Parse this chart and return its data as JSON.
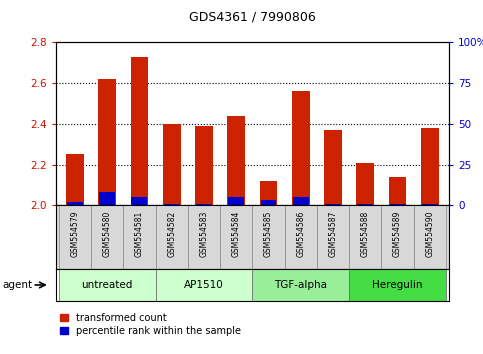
{
  "title": "GDS4361 / 7990806",
  "samples": [
    "GSM554579",
    "GSM554580",
    "GSM554581",
    "GSM554582",
    "GSM554583",
    "GSM554584",
    "GSM554585",
    "GSM554586",
    "GSM554587",
    "GSM554588",
    "GSM554589",
    "GSM554590"
  ],
  "red_values": [
    2.25,
    2.62,
    2.73,
    2.4,
    2.39,
    2.44,
    2.12,
    2.56,
    2.37,
    2.21,
    2.14,
    2.38
  ],
  "blue_pct": [
    2,
    8,
    5,
    1,
    1,
    5,
    3,
    5,
    1,
    1,
    1,
    1
  ],
  "ymin": 2.0,
  "ymax": 2.8,
  "yticks": [
    2.0,
    2.2,
    2.4,
    2.6,
    2.8
  ],
  "y2ticks": [
    0,
    25,
    50,
    75,
    100
  ],
  "groups": [
    {
      "label": "untreated",
      "start": 0,
      "end": 2,
      "color": "#ccffcc"
    },
    {
      "label": "AP1510",
      "start": 3,
      "end": 5,
      "color": "#ccffcc"
    },
    {
      "label": "TGF-alpha",
      "start": 6,
      "end": 8,
      "color": "#99ee99"
    },
    {
      "label": "Heregulin",
      "start": 9,
      "end": 11,
      "color": "#44dd44"
    }
  ],
  "bar_width": 0.55,
  "red_color": "#cc2200",
  "blue_color": "#0000cc",
  "bg_color": "#ffffff",
  "label_bg": "#d8d8d8",
  "agent_label": "agent",
  "legend_red": "transformed count",
  "legend_blue": "percentile rank within the sample",
  "title_fontsize": 9,
  "tick_fontsize": 7.5,
  "label_fontsize": 5.5,
  "group_fontsize": 7.5,
  "legend_fontsize": 7
}
